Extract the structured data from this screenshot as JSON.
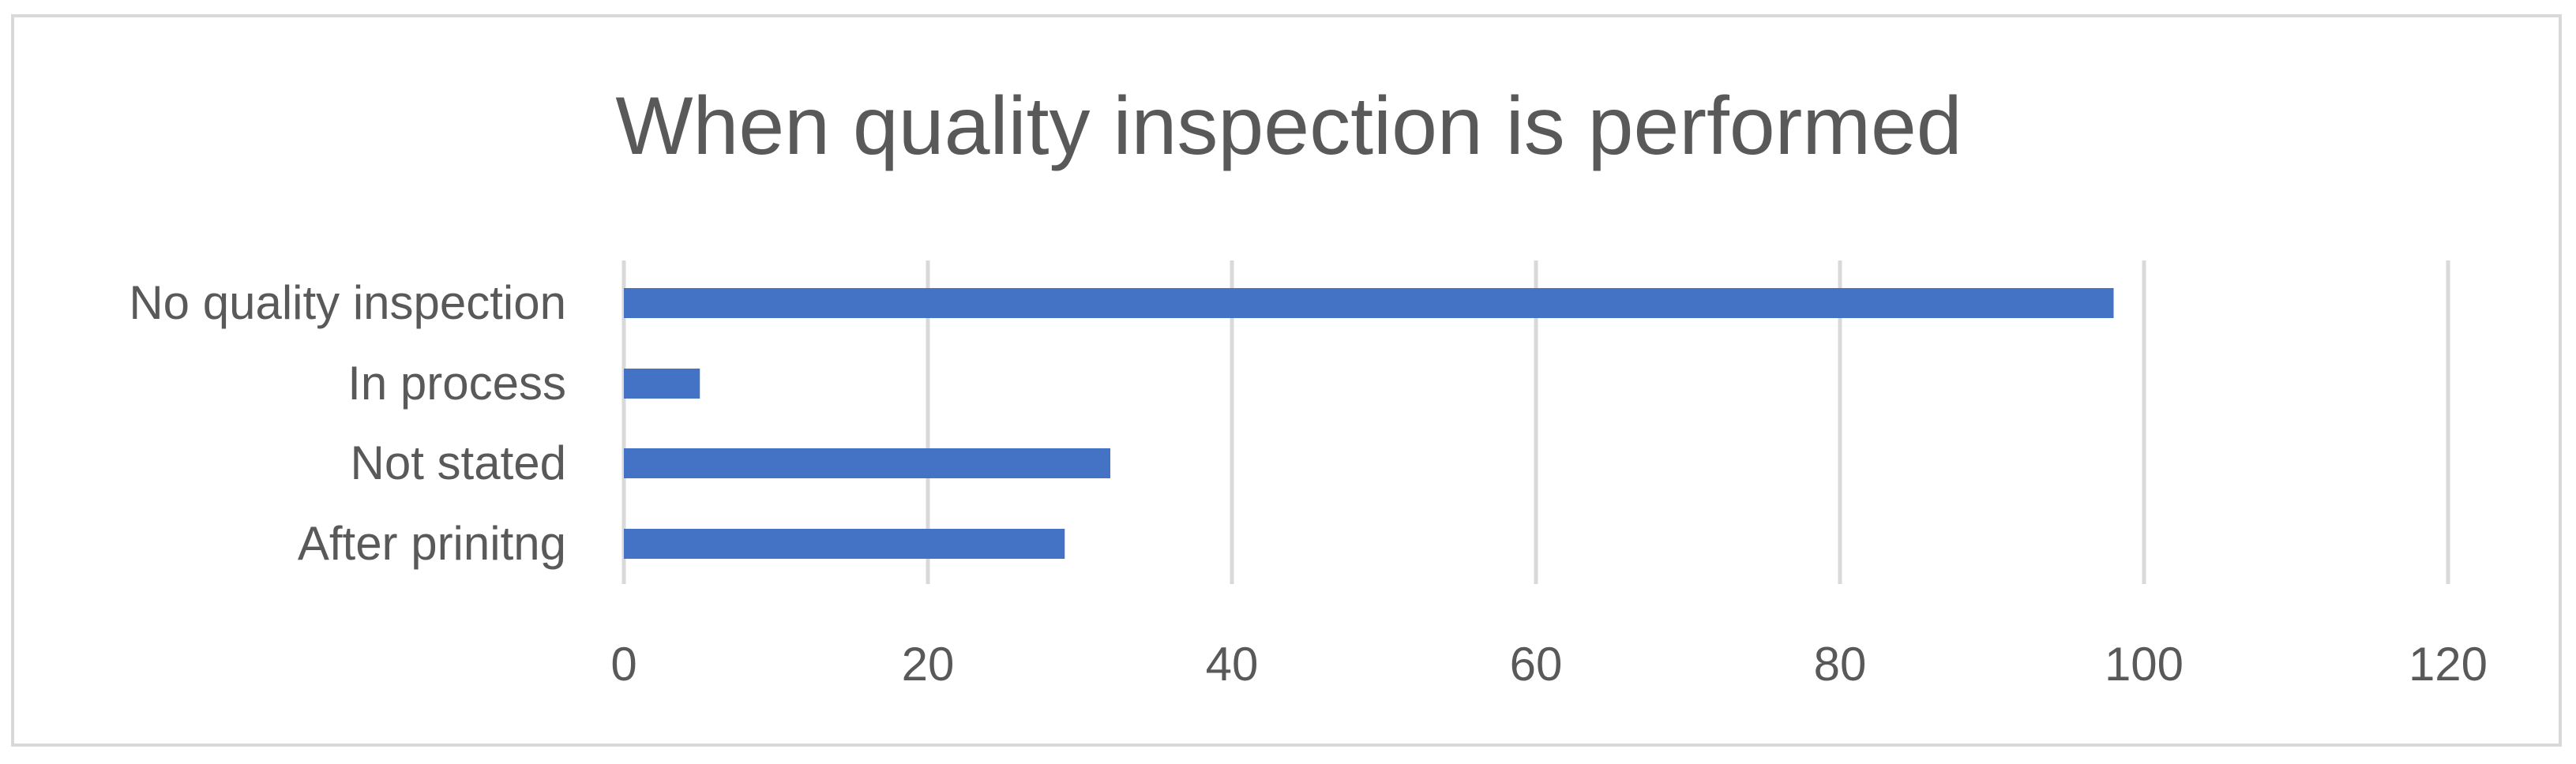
{
  "chart_data": {
    "type": "bar",
    "orientation": "horizontal",
    "title": "When quality inspection is performed",
    "categories": [
      "No quality inspection",
      "In process",
      "Not stated",
      "After prinitng"
    ],
    "values": [
      98,
      5,
      32,
      29
    ],
    "xlim": [
      0,
      120
    ],
    "x_ticks": [
      "0",
      "20",
      "40",
      "60",
      "80",
      "100",
      "120"
    ],
    "xlabel": "",
    "ylabel": "",
    "grid": "vertical gridlines",
    "legend": "none",
    "bar_color": "#4472c4",
    "grid_color": "#d9d9d9",
    "text_color": "#595959"
  }
}
